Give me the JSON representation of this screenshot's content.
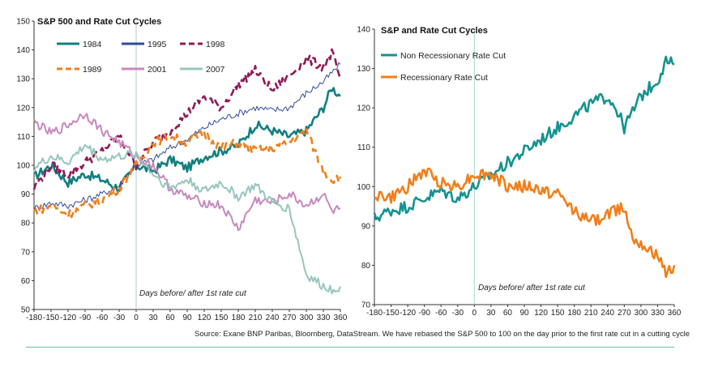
{
  "chart_data": [
    {
      "type": "line",
      "title": "S&P 500 and Rate Cut Cycles",
      "x_ticks": [
        -180,
        -150,
        -120,
        -90,
        -60,
        -30,
        0,
        30,
        60,
        90,
        120,
        150,
        180,
        210,
        240,
        270,
        300,
        330,
        360
      ],
      "xlim": [
        -180,
        360
      ],
      "ylim": [
        50,
        150
      ],
      "y_ticks": [
        50,
        60,
        70,
        80,
        90,
        100,
        110,
        120,
        130,
        140,
        150
      ],
      "annotation": "Days before/ after 1st rate cut",
      "vertical_line_x": 0,
      "series": [
        {
          "name": "1984",
          "color": "#127f7f",
          "style": "solid",
          "width": 2.6,
          "x": [
            -180,
            -150,
            -120,
            -90,
            -60,
            -30,
            0,
            30,
            60,
            90,
            120,
            150,
            180,
            210,
            240,
            270,
            300,
            330,
            345,
            360
          ],
          "y": [
            96,
            100,
            94,
            97,
            95,
            92,
            100,
            98,
            102,
            99,
            103,
            105,
            107,
            114,
            112,
            110,
            112,
            120,
            127,
            124
          ]
        },
        {
          "name": "1995",
          "color": "#2f4a99",
          "style": "solid",
          "width": 1.0,
          "x": [
            -180,
            -150,
            -120,
            -90,
            -60,
            -30,
            0,
            30,
            60,
            90,
            120,
            150,
            180,
            210,
            240,
            270,
            300,
            330,
            345,
            360
          ],
          "y": [
            85,
            87,
            86,
            88,
            90,
            93,
            100,
            102,
            106,
            109,
            113,
            116,
            118,
            120,
            119,
            120,
            125,
            129,
            132,
            135
          ]
        },
        {
          "name": "1998",
          "color": "#8e1a5a",
          "style": "dashed",
          "width": 2.6,
          "x": [
            -180,
            -150,
            -120,
            -90,
            -60,
            -30,
            0,
            30,
            60,
            90,
            120,
            150,
            180,
            210,
            240,
            270,
            300,
            330,
            345,
            360
          ],
          "y": [
            92,
            100,
            97,
            101,
            105,
            110,
            100,
            108,
            112,
            118,
            124,
            120,
            128,
            133,
            126,
            131,
            137,
            134,
            139,
            130
          ]
        },
        {
          "name": "1989",
          "color": "#f07f1c",
          "style": "dashed",
          "width": 2.6,
          "x": [
            -180,
            -150,
            -120,
            -90,
            -60,
            -30,
            0,
            30,
            60,
            90,
            120,
            150,
            180,
            210,
            240,
            270,
            300,
            330,
            345,
            360
          ],
          "y": [
            84,
            86,
            83,
            86,
            88,
            92,
            100,
            108,
            110,
            108,
            111,
            106,
            108,
            105,
            106,
            108,
            112,
            98,
            95,
            96
          ]
        },
        {
          "name": "2001",
          "color": "#c788be",
          "style": "solid",
          "width": 2.0,
          "x": [
            -180,
            -150,
            -120,
            -90,
            -60,
            -30,
            0,
            30,
            60,
            90,
            120,
            150,
            180,
            210,
            240,
            270,
            300,
            330,
            345,
            360
          ],
          "y": [
            115,
            111,
            114,
            118,
            112,
            108,
            103,
            100,
            92,
            89,
            87,
            86,
            78,
            88,
            87,
            90,
            86,
            90,
            84,
            85
          ]
        },
        {
          "name": "2007",
          "color": "#96c6bd",
          "style": "solid",
          "width": 2.0,
          "x": [
            -180,
            -150,
            -120,
            -90,
            -60,
            -30,
            0,
            30,
            60,
            90,
            120,
            150,
            180,
            210,
            240,
            270,
            300,
            330,
            345,
            360
          ],
          "y": [
            99,
            103,
            101,
            107,
            102,
            103,
            104,
            97,
            92,
            95,
            91,
            94,
            89,
            93,
            87,
            85,
            62,
            58,
            57,
            58
          ]
        }
      ]
    },
    {
      "type": "line",
      "title": "S&P and Rate Cut Cycles",
      "x_ticks": [
        -180,
        -150,
        -120,
        -90,
        -60,
        -30,
        0,
        30,
        60,
        90,
        120,
        150,
        180,
        210,
        240,
        270,
        300,
        330,
        360
      ],
      "xlim": [
        -180,
        360
      ],
      "ylim": [
        70,
        140
      ],
      "y_ticks": [
        70,
        80,
        90,
        100,
        110,
        120,
        130,
        140
      ],
      "annotation": "Days before/ after 1st rate cut",
      "vertical_line_x": 0,
      "series": [
        {
          "name": "Non Recessionary Rate Cut",
          "color": "#139390",
          "style": "solid",
          "width": 2.6,
          "x": [
            -180,
            -150,
            -120,
            -90,
            -60,
            -30,
            0,
            30,
            60,
            90,
            120,
            150,
            180,
            210,
            240,
            255,
            270,
            300,
            330,
            345,
            360
          ],
          "y": [
            92,
            94,
            95,
            97,
            99,
            97,
            100,
            103,
            106,
            109,
            112,
            115,
            118,
            121,
            123,
            120,
            115,
            123,
            127,
            132,
            131
          ]
        },
        {
          "name": "Recessionary Rate Cut",
          "color": "#f07f1c",
          "style": "solid",
          "width": 2.6,
          "x": [
            -180,
            -150,
            -120,
            -90,
            -60,
            -30,
            0,
            30,
            60,
            90,
            120,
            150,
            180,
            210,
            240,
            270,
            285,
            300,
            330,
            345,
            360
          ],
          "y": [
            98,
            97,
            100,
            104,
            101,
            100,
            103,
            103,
            100,
            100,
            99,
            98,
            94,
            91,
            93,
            95,
            87,
            86,
            82,
            78,
            80
          ]
        }
      ]
    }
  ],
  "source_text": "Source: Exane BNP Paribas, Bloomberg, DataStream. We have rebased the S&P 500 to 100 on the day prior to the first rate cut in a cutting cycle"
}
